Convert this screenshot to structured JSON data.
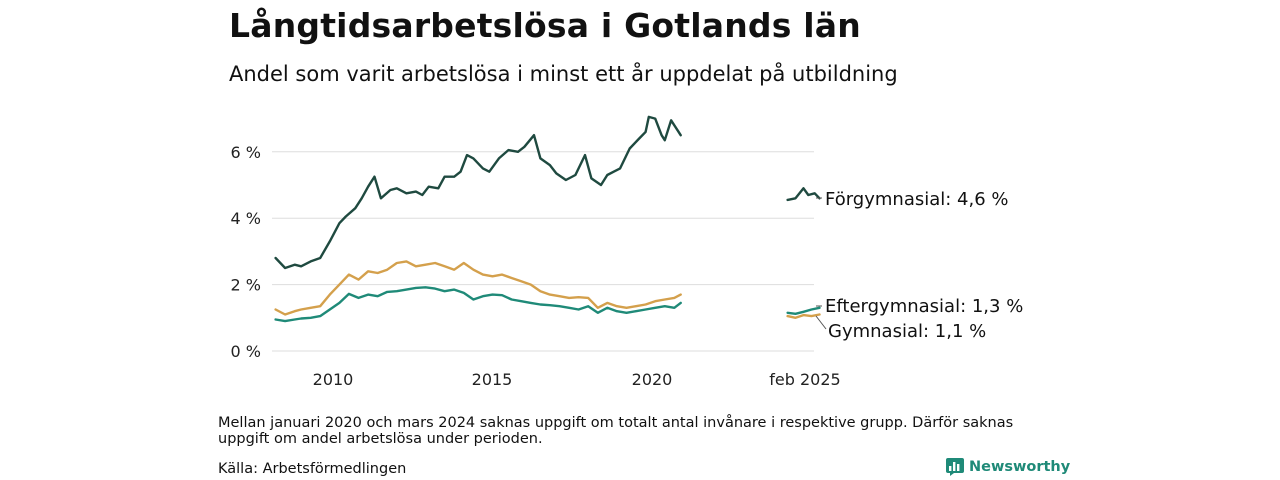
{
  "title": "Långtidsarbetslösa i Gotlands län",
  "subtitle": "Andel som varit arbetslösa i minst ett år uppdelat på utbildning",
  "note": "Mellan januari 2020 och mars 2024 saknas uppgift om totalt antal invånare i respektive grupp. Därför saknas uppgift om andel arbetslösa under perioden.",
  "source": "Källa: Arbetsförmedlingen",
  "brand": "Newsworthy",
  "colors": {
    "forgymnasial": "#1f4a40",
    "eftergymnasial": "#1f8a78",
    "gymnasial": "#d4a04c",
    "grid": "#dddddd"
  },
  "chart_data": {
    "type": "line",
    "x_tick_labels": [
      "2010",
      "2015",
      "2020",
      "feb 2025"
    ],
    "y_tick_labels": [
      "0 %",
      "2 %",
      "4 %",
      "6 %"
    ],
    "ylim": [
      0,
      7.2
    ],
    "grid": "horizontal",
    "series": [
      {
        "name": "Förgymnasial",
        "end_label": "Förgymnasial: 4,6 %",
        "color": "#1f4a40",
        "segment_1": {
          "x": [
            2008.2,
            2008.5,
            2008.8,
            2009.0,
            2009.3,
            2009.6,
            2009.9,
            2010.2,
            2010.4,
            2010.7,
            2010.9,
            2011.1,
            2011.3,
            2011.5,
            2011.8,
            2012.0,
            2012.3,
            2012.6,
            2012.8,
            2013.0,
            2013.3,
            2013.5,
            2013.8,
            2014.0,
            2014.2,
            2014.4,
            2014.7,
            2014.9,
            2015.2,
            2015.5,
            2015.8,
            2016.0,
            2016.3,
            2016.5,
            2016.8,
            2017.0,
            2017.3,
            2017.6,
            2017.9,
            2018.1,
            2018.4,
            2018.6,
            2018.8,
            2019.0,
            2019.3,
            2019.6,
            2019.8,
            2019.9,
            2020.1,
            2020.3,
            2020.4,
            2020.6,
            2020.8,
            2020.9
          ],
          "y": [
            2.8,
            2.5,
            2.6,
            2.55,
            2.7,
            2.8,
            3.3,
            3.85,
            4.05,
            4.3,
            4.6,
            4.95,
            5.25,
            4.6,
            4.85,
            4.9,
            4.75,
            4.8,
            4.7,
            4.95,
            4.9,
            5.25,
            5.25,
            5.4,
            5.9,
            5.8,
            5.5,
            5.4,
            5.8,
            6.05,
            6.0,
            6.15,
            6.5,
            5.8,
            5.6,
            5.35,
            5.15,
            5.3,
            5.9,
            5.2,
            5.0,
            5.3,
            5.4,
            5.5,
            6.1,
            6.4,
            6.6,
            7.05,
            7.0,
            6.5,
            6.35,
            6.95,
            6.65,
            6.5
          ]
        },
        "segment_2": {
          "x": [
            2024.25,
            2024.5,
            2024.75,
            2024.9,
            2025.1,
            2025.25
          ],
          "y": [
            4.55,
            4.6,
            4.9,
            4.7,
            4.75,
            4.6
          ]
        }
      },
      {
        "name": "Eftergymnasial",
        "end_label": "Eftergymnasial: 1,3 %",
        "color": "#1f8a78",
        "segment_1": {
          "x": [
            2008.2,
            2008.5,
            2008.8,
            2009.0,
            2009.3,
            2009.6,
            2009.9,
            2010.2,
            2010.5,
            2010.8,
            2011.1,
            2011.4,
            2011.7,
            2012.0,
            2012.3,
            2012.6,
            2012.9,
            2013.2,
            2013.5,
            2013.8,
            2014.1,
            2014.4,
            2014.7,
            2015.0,
            2015.3,
            2015.6,
            2015.9,
            2016.2,
            2016.5,
            2016.8,
            2017.1,
            2017.4,
            2017.7,
            2018.0,
            2018.3,
            2018.6,
            2018.9,
            2019.2,
            2019.5,
            2019.8,
            2020.1,
            2020.4,
            2020.7,
            2020.9
          ],
          "y": [
            0.95,
            0.9,
            0.95,
            0.98,
            1.0,
            1.05,
            1.25,
            1.45,
            1.72,
            1.6,
            1.7,
            1.65,
            1.78,
            1.8,
            1.85,
            1.9,
            1.92,
            1.88,
            1.8,
            1.85,
            1.75,
            1.55,
            1.65,
            1.7,
            1.68,
            1.55,
            1.5,
            1.45,
            1.4,
            1.38,
            1.35,
            1.3,
            1.25,
            1.35,
            1.15,
            1.3,
            1.2,
            1.15,
            1.2,
            1.25,
            1.3,
            1.35,
            1.3,
            1.45
          ]
        },
        "segment_2": {
          "x": [
            2024.25,
            2024.5,
            2024.75,
            2025.0,
            2025.25
          ],
          "y": [
            1.15,
            1.12,
            1.18,
            1.25,
            1.3
          ]
        }
      },
      {
        "name": "Gymnasial",
        "end_label": "Gymnasial: 1,1 %",
        "color": "#d4a04c",
        "segment_1": {
          "x": [
            2008.2,
            2008.5,
            2008.8,
            2009.0,
            2009.3,
            2009.6,
            2009.9,
            2010.2,
            2010.5,
            2010.8,
            2011.1,
            2011.4,
            2011.7,
            2012.0,
            2012.3,
            2012.6,
            2012.9,
            2013.2,
            2013.5,
            2013.8,
            2014.1,
            2014.4,
            2014.7,
            2015.0,
            2015.3,
            2015.6,
            2015.9,
            2016.2,
            2016.5,
            2016.8,
            2017.1,
            2017.4,
            2017.7,
            2018.0,
            2018.3,
            2018.6,
            2018.9,
            2019.2,
            2019.5,
            2019.8,
            2020.1,
            2020.4,
            2020.7,
            2020.9
          ],
          "y": [
            1.25,
            1.1,
            1.2,
            1.25,
            1.3,
            1.35,
            1.7,
            2.0,
            2.3,
            2.15,
            2.4,
            2.35,
            2.45,
            2.65,
            2.7,
            2.55,
            2.6,
            2.65,
            2.55,
            2.45,
            2.65,
            2.45,
            2.3,
            2.25,
            2.3,
            2.2,
            2.1,
            2.0,
            1.8,
            1.7,
            1.65,
            1.6,
            1.62,
            1.6,
            1.3,
            1.45,
            1.35,
            1.3,
            1.35,
            1.4,
            1.5,
            1.55,
            1.6,
            1.7
          ]
        },
        "segment_2": {
          "x": [
            2024.25,
            2024.5,
            2024.75,
            2025.0,
            2025.25
          ],
          "y": [
            1.05,
            1.0,
            1.08,
            1.05,
            1.1
          ]
        }
      }
    ]
  }
}
